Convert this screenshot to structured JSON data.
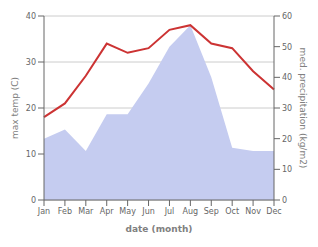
{
  "chart_data": {
    "type": "line",
    "categories": [
      "Jan",
      "Feb",
      "Mar",
      "Apr",
      "May",
      "Jun",
      "Jul",
      "Aug",
      "Sep",
      "Oct",
      "Nov",
      "Dec"
    ],
    "xlabel": "date (month)",
    "ylabel": "max temp (C)",
    "y2label": "med. precipitation (kg/m2)",
    "series": [
      {
        "type": "area",
        "axis": "y2",
        "color": "#c5ccf0",
        "values": [
          20,
          23,
          16,
          28,
          28,
          38,
          50,
          57,
          40,
          17,
          16,
          16
        ]
      },
      {
        "type": "line",
        "color": "#cc3333",
        "values": [
          18,
          21,
          27,
          34,
          32,
          33,
          37,
          38,
          34,
          33,
          28,
          24
        ]
      }
    ],
    "ylim": [
      0,
      40
    ],
    "yticks": [
      0,
      10,
      20,
      30,
      40
    ],
    "y2lim": [
      0,
      60
    ],
    "y2ticks": [
      0,
      10,
      20,
      30,
      40,
      50,
      60
    ],
    "grid": true
  }
}
